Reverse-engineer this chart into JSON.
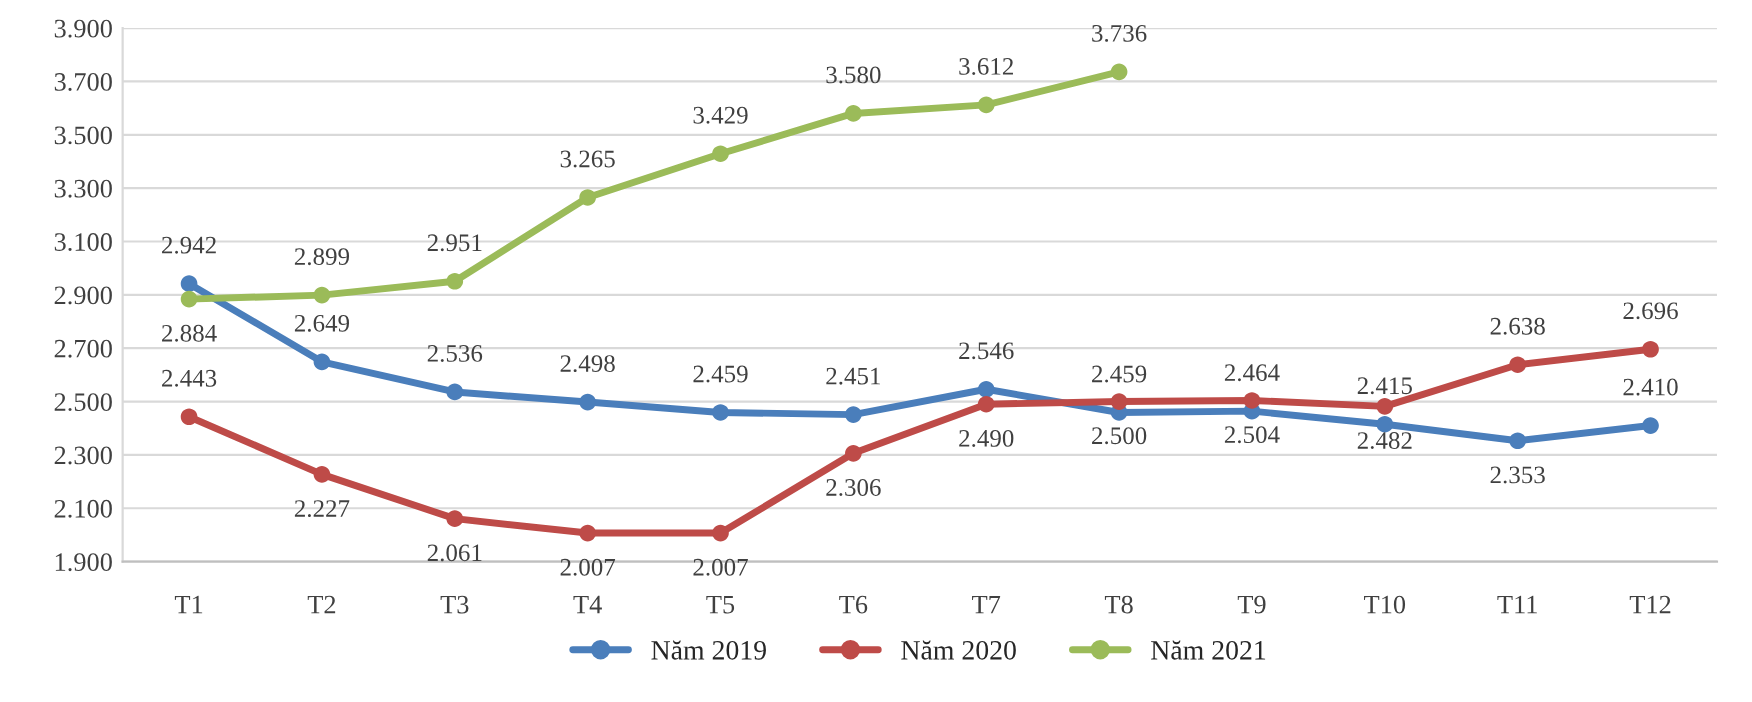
{
  "chart_data": {
    "type": "line",
    "categories": [
      "T1",
      "T2",
      "T3",
      "T4",
      "T5",
      "T6",
      "T7",
      "T8",
      "T9",
      "T10",
      "T11",
      "T12"
    ],
    "series": [
      {
        "name": "Năm 2019",
        "color": "#4a7ebb",
        "values": [
          2942,
          2649,
          2536,
          2498,
          2459,
          2451,
          2546,
          2459,
          2464,
          2415,
          2353,
          2410
        ],
        "value_labels": [
          "2.942",
          "2.649",
          "2.536",
          "2.498",
          "2.459",
          "2.451",
          "2.546",
          "2.459",
          "2.464",
          "2.415",
          "2.353",
          "2.410"
        ]
      },
      {
        "name": "Năm 2020",
        "color": "#be4b48",
        "values": [
          2443,
          2227,
          2061,
          2007,
          2007,
          2306,
          2490,
          2500,
          2504,
          2482,
          2638,
          2696
        ],
        "value_labels": [
          "2.443",
          "2.227",
          "2.061",
          "2.007",
          "2.007",
          "2.306",
          "2.490",
          "2.500",
          "2.504",
          "2.482",
          "2.638",
          "2.696"
        ]
      },
      {
        "name": "Năm 2021",
        "color": "#9bbb59",
        "values": [
          2884,
          2899,
          2951,
          3265,
          3429,
          3580,
          3612,
          3736,
          null,
          null,
          null,
          null
        ],
        "value_labels": [
          "2.884",
          "2.899",
          "2.951",
          "3.265",
          "3.429",
          "3.580",
          "3.612",
          "3.736",
          null,
          null,
          null,
          null
        ]
      }
    ],
    "ylim": [
      1900,
      3900
    ],
    "yticks": [
      {
        "value": 1900,
        "label": "1.900"
      },
      {
        "value": 2100,
        "label": "2.100"
      },
      {
        "value": 2300,
        "label": "2.300"
      },
      {
        "value": 2500,
        "label": "2.500"
      },
      {
        "value": 2700,
        "label": "2.700"
      },
      {
        "value": 2900,
        "label": "2.900"
      },
      {
        "value": 3100,
        "label": "3.100"
      },
      {
        "value": 3300,
        "label": "3.300"
      },
      {
        "value": 3500,
        "label": "3.500"
      },
      {
        "value": 3700,
        "label": "3.700"
      },
      {
        "value": 3900,
        "label": "3.900"
      }
    ],
    "grid": "y",
    "legend": "bottom",
    "marker": "circle",
    "line_style": "solid"
  }
}
